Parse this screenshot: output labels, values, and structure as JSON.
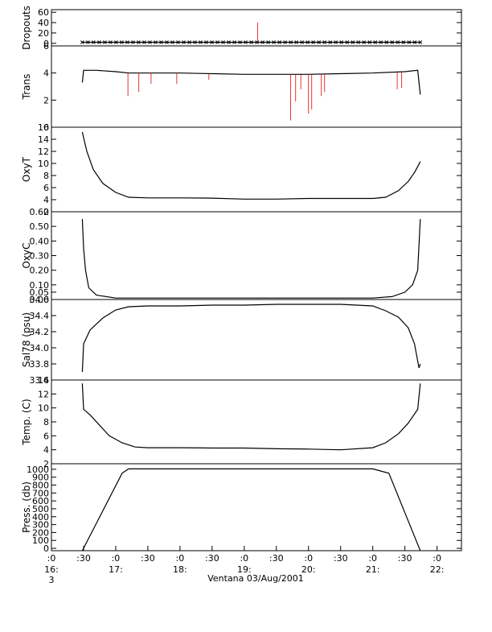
{
  "chart_data": {
    "type": "line",
    "footer": "Ventana 03/Aug/2001",
    "x_ticks": [
      {
        "t": 16.0,
        "l1": ":0",
        "l2": "16:",
        "l3": "3"
      },
      {
        "t": 16.5,
        "l1": ":30",
        "l2": "",
        "l3": ""
      },
      {
        "t": 17.0,
        "l1": ":0",
        "l2": "17:",
        "l3": ""
      },
      {
        "t": 17.5,
        "l1": ":30",
        "l2": "",
        "l3": ""
      },
      {
        "t": 18.0,
        "l1": ":0",
        "l2": "18:",
        "l3": ""
      },
      {
        "t": 18.5,
        "l1": ":30",
        "l2": "",
        "l3": ""
      },
      {
        "t": 19.0,
        "l1": ":0",
        "l2": "19:",
        "l3": ""
      },
      {
        "t": 19.5,
        "l1": ":30",
        "l2": "",
        "l3": ""
      },
      {
        "t": 20.0,
        "l1": ":0",
        "l2": "20:",
        "l3": ""
      },
      {
        "t": 20.5,
        "l1": ":30",
        "l2": "",
        "l3": ""
      },
      {
        "t": 21.0,
        "l1": ":0",
        "l2": "21:",
        "l3": ""
      },
      {
        "t": 21.5,
        "l1": ":30",
        "l2": "",
        "l3": ""
      },
      {
        "t": 22.0,
        "l1": ":0",
        "l2": "22:",
        "l3": ""
      }
    ],
    "x_range": [
      16.0,
      22.38
    ],
    "panels": [
      {
        "ylabel": "Dropouts",
        "ylim": [
          -5,
          65
        ],
        "yticks": [
          {
            "v": 0,
            "l": "0"
          },
          {
            "v": 20,
            "l": "20"
          },
          {
            "v": 40,
            "l": "40"
          },
          {
            "v": 60,
            "l": "60"
          }
        ],
        "x": [
          16.48,
          21.74
        ],
        "black": [
          2,
          2
        ],
        "red_spikes": [
          {
            "x": 19.21,
            "y": 40
          }
        ],
        "markers": true
      },
      {
        "ylabel": "Trans",
        "ylim": [
          0,
          6
        ],
        "yticks": [
          {
            "v": 0,
            "l": "0"
          },
          {
            "v": 2,
            "l": "2"
          },
          {
            "v": 4,
            "l": "4"
          },
          {
            "v": 6,
            "l": "6"
          }
        ],
        "x": [
          16.48,
          16.5,
          16.7,
          17.0,
          17.2,
          17.35,
          17.6,
          18.0,
          18.5,
          19.0,
          19.5,
          19.8,
          20.0,
          20.5,
          21.0,
          21.5,
          21.7,
          21.74
        ],
        "black": [
          3.3,
          4.2,
          4.2,
          4.1,
          4.0,
          4.0,
          4.0,
          4.0,
          3.95,
          3.9,
          3.9,
          3.9,
          3.9,
          3.95,
          4.0,
          4.1,
          4.2,
          2.4
        ],
        "red_spikes": [
          {
            "x": 17.19,
            "y": 2.3
          },
          {
            "x": 17.36,
            "y": 2.6
          },
          {
            "x": 17.55,
            "y": 3.2
          },
          {
            "x": 17.95,
            "y": 3.2
          },
          {
            "x": 18.45,
            "y": 3.5
          },
          {
            "x": 19.72,
            "y": 0.5
          },
          {
            "x": 19.8,
            "y": 1.9
          },
          {
            "x": 19.88,
            "y": 2.8
          },
          {
            "x": 20.0,
            "y": 1.0
          },
          {
            "x": 20.05,
            "y": 1.3
          },
          {
            "x": 20.2,
            "y": 2.3
          },
          {
            "x": 20.25,
            "y": 2.6
          },
          {
            "x": 21.38,
            "y": 2.8
          },
          {
            "x": 21.45,
            "y": 2.9
          }
        ],
        "markers": false
      },
      {
        "ylabel": "OxyT",
        "ylim": [
          2,
          16
        ],
        "yticks": [
          {
            "v": 2,
            "l": "2"
          },
          {
            "v": 4,
            "l": "4"
          },
          {
            "v": 6,
            "l": "6"
          },
          {
            "v": 8,
            "l": "8"
          },
          {
            "v": 10,
            "l": "10"
          },
          {
            "v": 12,
            "l": "12"
          },
          {
            "v": 14,
            "l": "14"
          },
          {
            "v": 16,
            "l": "16"
          }
        ],
        "x": [
          16.48,
          16.55,
          16.65,
          16.8,
          17.0,
          17.2,
          17.5,
          18.0,
          18.5,
          19.0,
          19.5,
          20.0,
          20.5,
          21.0,
          21.2,
          21.4,
          21.55,
          21.65,
          21.74
        ],
        "black": [
          15.2,
          12.0,
          9.0,
          6.7,
          5.2,
          4.4,
          4.3,
          4.3,
          4.25,
          4.1,
          4.1,
          4.2,
          4.2,
          4.2,
          4.4,
          5.5,
          7.0,
          8.5,
          10.3
        ],
        "red_spikes": [],
        "markers": false
      },
      {
        "ylabel": "OxyC",
        "ylim": [
          0,
          0.6
        ],
        "yticks": [
          {
            "v": 0,
            "l": "0.00"
          },
          {
            "v": 0.05,
            "l": "0.05"
          },
          {
            "v": 0.1,
            "l": "0.10"
          },
          {
            "v": 0.2,
            "l": "0.20"
          },
          {
            "v": 0.3,
            "l": "0.30"
          },
          {
            "v": 0.4,
            "l": "0.40"
          },
          {
            "v": 0.5,
            "l": "0.50"
          },
          {
            "v": 0.6,
            "l": "0.60"
          }
        ],
        "x": [
          16.48,
          16.5,
          16.53,
          16.58,
          16.7,
          17.0,
          17.5,
          18.0,
          18.5,
          19.0,
          19.5,
          20.0,
          20.5,
          21.0,
          21.3,
          21.5,
          21.62,
          21.7,
          21.74
        ],
        "black": [
          0.55,
          0.35,
          0.2,
          0.08,
          0.03,
          0.01,
          0.01,
          0.01,
          0.01,
          0.01,
          0.01,
          0.01,
          0.01,
          0.01,
          0.02,
          0.05,
          0.1,
          0.2,
          0.55
        ],
        "red_spikes": [],
        "markers": false
      },
      {
        "ylabel": "Sal78 (psu)",
        "ylim": [
          33.6,
          34.6
        ],
        "yticks": [
          {
            "v": 33.6,
            "l": "33.6"
          },
          {
            "v": 33.8,
            "l": "33.8"
          },
          {
            "v": 34.0,
            "l": "34.0"
          },
          {
            "v": 34.2,
            "l": "34.2"
          },
          {
            "v": 34.4,
            "l": "34.4"
          },
          {
            "v": 34.6,
            "l": "34.6"
          }
        ],
        "x": [
          16.48,
          16.5,
          16.6,
          16.8,
          17.0,
          17.2,
          17.5,
          18.0,
          18.5,
          19.0,
          19.5,
          20.0,
          20.5,
          21.0,
          21.2,
          21.4,
          21.55,
          21.65,
          21.72,
          21.74
        ],
        "black": [
          33.7,
          34.05,
          34.22,
          34.37,
          34.47,
          34.51,
          34.52,
          34.52,
          34.53,
          34.53,
          34.54,
          34.54,
          34.54,
          34.52,
          34.46,
          34.38,
          34.25,
          34.05,
          33.75,
          33.8
        ],
        "red_spikes": [],
        "markers": false
      },
      {
        "ylabel": "Temp. (C)",
        "ylim": [
          2,
          14
        ],
        "yticks": [
          {
            "v": 2,
            "l": "2"
          },
          {
            "v": 4,
            "l": "4"
          },
          {
            "v": 6,
            "l": "6"
          },
          {
            "v": 8,
            "l": "8"
          },
          {
            "v": 10,
            "l": "10"
          },
          {
            "v": 12,
            "l": "12"
          },
          {
            "v": 14,
            "l": "14"
          }
        ],
        "x": [
          16.48,
          16.5,
          16.6,
          16.75,
          16.9,
          17.1,
          17.3,
          17.5,
          18.0,
          18.5,
          19.0,
          19.5,
          20.0,
          20.5,
          21.0,
          21.2,
          21.4,
          21.55,
          21.7,
          21.74
        ],
        "black": [
          13.5,
          9.8,
          9.0,
          7.5,
          6.0,
          5.0,
          4.4,
          4.3,
          4.3,
          4.25,
          4.25,
          4.15,
          4.1,
          4.0,
          4.3,
          5.0,
          6.3,
          7.8,
          9.8,
          13.5
        ],
        "red_spikes": [],
        "markers": false
      },
      {
        "ylabel": "Press. (db)",
        "ylim": [
          -30,
          1070
        ],
        "yticks": [
          {
            "v": 0,
            "l": "0"
          },
          {
            "v": 100,
            "l": "100"
          },
          {
            "v": 200,
            "l": "200"
          },
          {
            "v": 300,
            "l": "300"
          },
          {
            "v": 400,
            "l": "400"
          },
          {
            "v": 500,
            "l": "500"
          },
          {
            "v": 600,
            "l": "600"
          },
          {
            "v": 700,
            "l": "700"
          },
          {
            "v": 800,
            "l": "800"
          },
          {
            "v": 900,
            "l": "900"
          },
          {
            "v": 1000,
            "l": "1000"
          }
        ],
        "x": [
          16.48,
          17.1,
          17.2,
          18.0,
          19.0,
          20.0,
          21.0,
          21.25,
          21.74
        ],
        "black": [
          -30,
          950,
          1005,
          1005,
          1005,
          1005,
          1005,
          950,
          -30
        ],
        "red_spikes": [],
        "markers": false
      }
    ]
  }
}
